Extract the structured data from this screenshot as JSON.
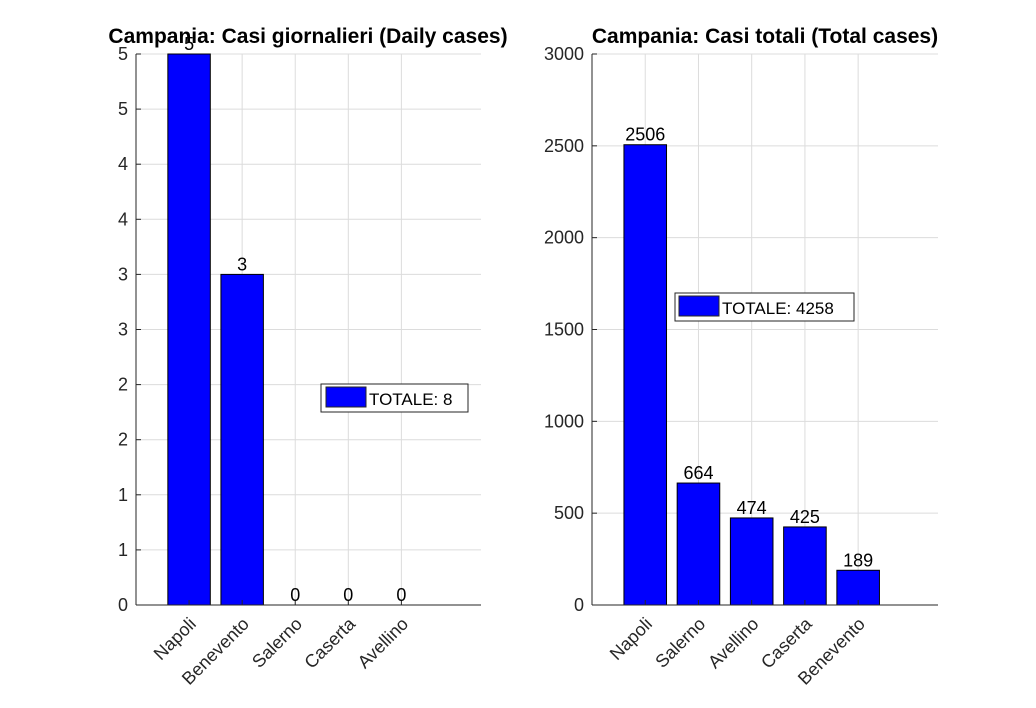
{
  "colors": {
    "bar": "#0000ff",
    "grid": "#dcdcdc",
    "axis": "#262626"
  },
  "chart_data": [
    {
      "type": "bar",
      "title": "Campania: Casi giornalieri (Daily cases)",
      "categories": [
        "Napoli",
        "Benevento",
        "Salerno",
        "Caserta",
        "Avellino"
      ],
      "values": [
        5,
        3,
        0,
        0,
        0
      ],
      "data_labels": [
        "5",
        "3",
        "0",
        "0",
        "0"
      ],
      "ylim": [
        0,
        5
      ],
      "yticks": [
        0,
        0.5,
        1,
        1.5,
        2,
        2.5,
        3,
        3.5,
        4,
        4.5,
        5
      ],
      "ytick_labels": [
        "0",
        "1",
        "1",
        "2",
        "2",
        "3",
        "3",
        "4",
        "4",
        "5",
        "5"
      ],
      "xlim": [
        0,
        6.5
      ],
      "grid": true,
      "legend": {
        "text": "TOTALE: 8",
        "placement": "center-right"
      }
    },
    {
      "type": "bar",
      "title": "Campania: Casi totali (Total cases)",
      "categories": [
        "Napoli",
        "Salerno",
        "Avellino",
        "Caserta",
        "Benevento"
      ],
      "values": [
        2506,
        664,
        474,
        425,
        189
      ],
      "data_labels": [
        "2506",
        "664",
        "474",
        "425",
        "189"
      ],
      "ylim": [
        0,
        3000
      ],
      "yticks": [
        0,
        500,
        1000,
        1500,
        2000,
        2500,
        3000
      ],
      "ytick_labels": [
        "0",
        "500",
        "1000",
        "1500",
        "2000",
        "2500",
        "3000"
      ],
      "xlim": [
        0,
        6.5
      ],
      "grid": true,
      "legend": {
        "text": "TOTALE: 4258",
        "placement": "center-left"
      }
    }
  ]
}
